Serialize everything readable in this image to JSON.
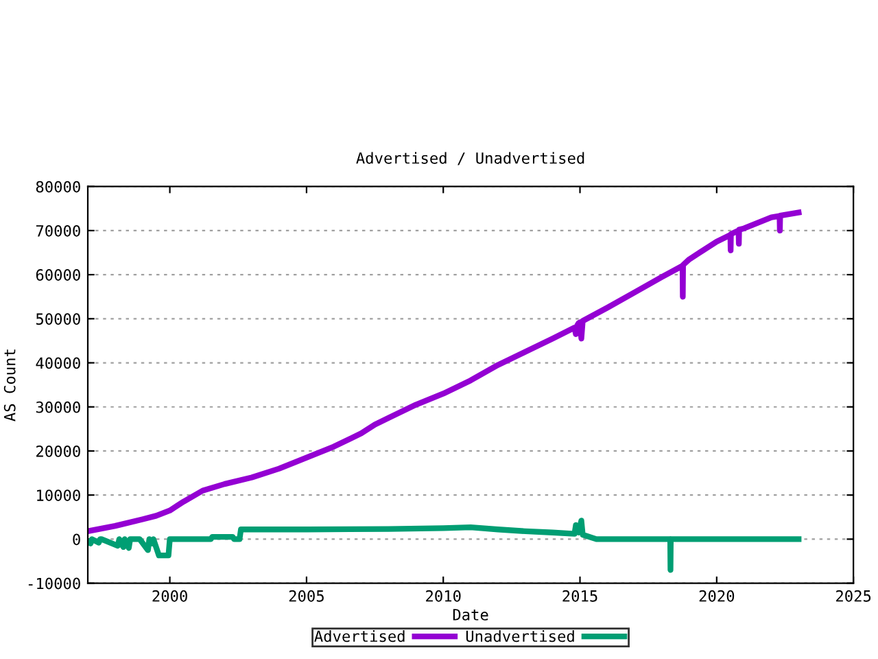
{
  "chart_data": {
    "type": "line",
    "title": "Advertised / Unadvertised",
    "xlabel": "Date",
    "ylabel": "AS Count",
    "xlim": [
      1997,
      2025
    ],
    "xticks": [
      2000,
      2005,
      2010,
      2015,
      2020,
      2025
    ],
    "ylim": [
      -10000,
      80000
    ],
    "yticks": [
      -10000,
      0,
      10000,
      20000,
      30000,
      40000,
      50000,
      60000,
      70000,
      80000
    ],
    "grid": "y",
    "legend": "bottom",
    "line_style": "solid",
    "marker": "none",
    "series": [
      {
        "name": "Advertised",
        "color": "#9400d3",
        "x": [
          1997.0,
          1998.0,
          1999.0,
          1999.5,
          2000.0,
          2000.5,
          2001.2,
          2002.0,
          2003.0,
          2004.0,
          2005.0,
          2006.0,
          2007.0,
          2007.5,
          2008.0,
          2009.0,
          2010.0,
          2011.0,
          2012.0,
          2013.0,
          2014.0,
          2014.8,
          2014.85,
          2014.9,
          2014.95,
          2015.0,
          2015.05,
          2015.1,
          2016.0,
          2017.0,
          2018.0,
          2018.75,
          2018.76,
          2018.77,
          2019.0,
          2020.0,
          2020.5,
          2020.51,
          2020.52,
          2020.8,
          2020.81,
          2020.82,
          2021.0,
          2022.0,
          2022.3,
          2022.31,
          2022.32,
          2023.1
        ],
        "values": [
          1800,
          3000,
          4500,
          5300,
          6500,
          8500,
          11000,
          12500,
          14000,
          16000,
          18500,
          21000,
          24000,
          26000,
          27500,
          30500,
          33000,
          36000,
          39500,
          42500,
          45500,
          48000,
          46500,
          48500,
          49000,
          49200,
          45500,
          49500,
          52500,
          56000,
          59500,
          62000,
          55000,
          62200,
          63500,
          67500,
          69000,
          65500,
          69200,
          70000,
          67000,
          70200,
          70500,
          73000,
          73300,
          70000,
          73400,
          74200
        ]
      },
      {
        "name": "Unadvertised",
        "color": "#009e73",
        "x": [
          1997.0,
          1997.1,
          1997.15,
          1997.4,
          1997.45,
          1997.5,
          1998.1,
          1998.15,
          1998.3,
          1998.35,
          1998.5,
          1998.55,
          1998.9,
          1999.2,
          1999.25,
          1999.35,
          1999.4,
          1999.6,
          1999.65,
          1999.95,
          2000.0,
          2001.5,
          2001.55,
          2002.3,
          2002.35,
          2002.55,
          2002.6,
          2005.0,
          2008.0,
          2010.0,
          2011.0,
          2012.0,
          2013.0,
          2014.0,
          2014.8,
          2014.85,
          2014.95,
          2015.05,
          2015.1,
          2015.2,
          2015.6,
          2018.3,
          2018.31,
          2018.32,
          2023.1
        ],
        "values": [
          0,
          -1000,
          0,
          -800,
          0,
          0,
          -1500,
          0,
          -1800,
          0,
          -2000,
          0,
          0,
          -2500,
          0,
          -1000,
          0,
          -3700,
          -3700,
          -3700,
          0,
          0,
          500,
          500,
          0,
          0,
          2200,
          2200,
          2300,
          2500,
          2700,
          2200,
          1800,
          1500,
          1200,
          3200,
          1500,
          4200,
          1000,
          800,
          0,
          0,
          -7000,
          0,
          0
        ]
      }
    ]
  }
}
